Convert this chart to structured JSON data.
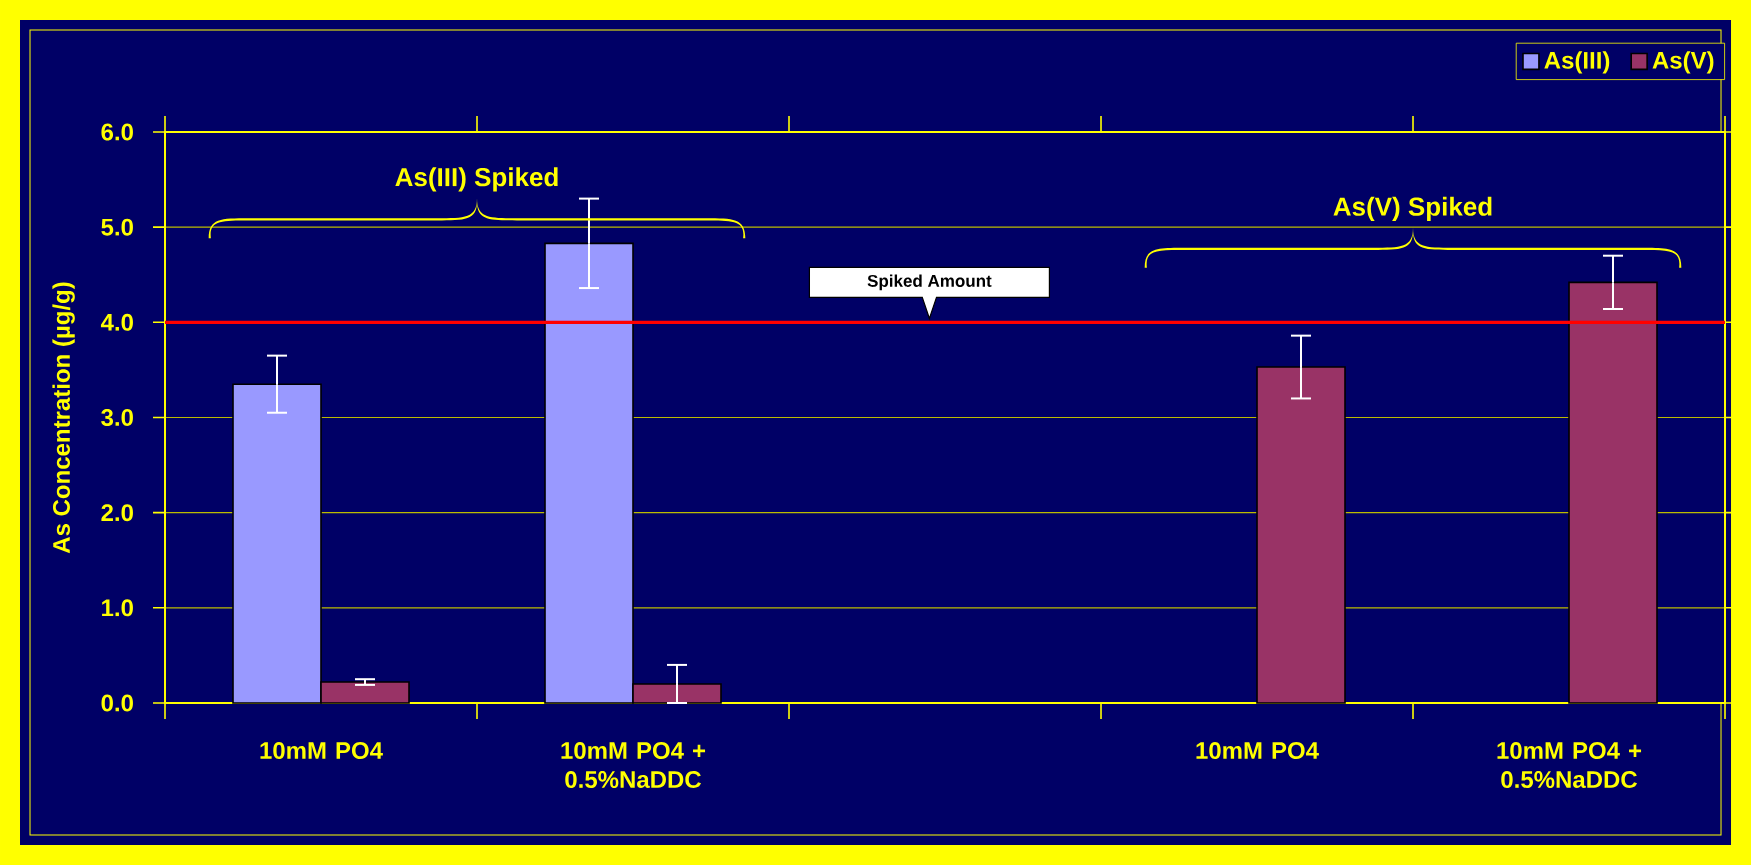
{
  "chart_data": {
    "type": "bar",
    "categories": [
      "10mM PO4",
      "10mM PO4 + 0.5%NaDDC",
      null,
      "10mM PO4",
      "10mM PO4 + 0.5%NaDDC"
    ],
    "series": [
      {
        "name": "As(III)",
        "color": "#9999ff",
        "values": [
          3.35,
          4.83,
          null,
          null,
          null
        ],
        "errors": [
          0.3,
          0.47,
          null,
          null,
          null
        ]
      },
      {
        "name": "As(V)",
        "color": "#993366",
        "values": [
          0.22,
          0.2,
          null,
          3.53,
          4.42
        ],
        "errors": [
          0.03,
          0.2,
          null,
          0.33,
          0.28
        ]
      }
    ],
    "ylabel": "As Concentration (µg/g)",
    "ylim": [
      0,
      6
    ],
    "yticks": [
      {
        "value": 0,
        "label": "0.0"
      },
      {
        "value": 1,
        "label": "1.0"
      },
      {
        "value": 2,
        "label": "2.0"
      },
      {
        "value": 3,
        "label": "3.0"
      },
      {
        "value": 4,
        "label": "4.0"
      },
      {
        "value": 5,
        "label": "5.0"
      },
      {
        "value": 6,
        "label": "6.0"
      }
    ],
    "grid": "y",
    "legend": "top right",
    "ref_lines": [
      {
        "axis": "y",
        "value": 4.0,
        "label": "Spiked Amount",
        "color": "#ff0000"
      }
    ],
    "annotations": [
      "As(III) Spiked",
      "As(V) Spiked"
    ]
  }
}
